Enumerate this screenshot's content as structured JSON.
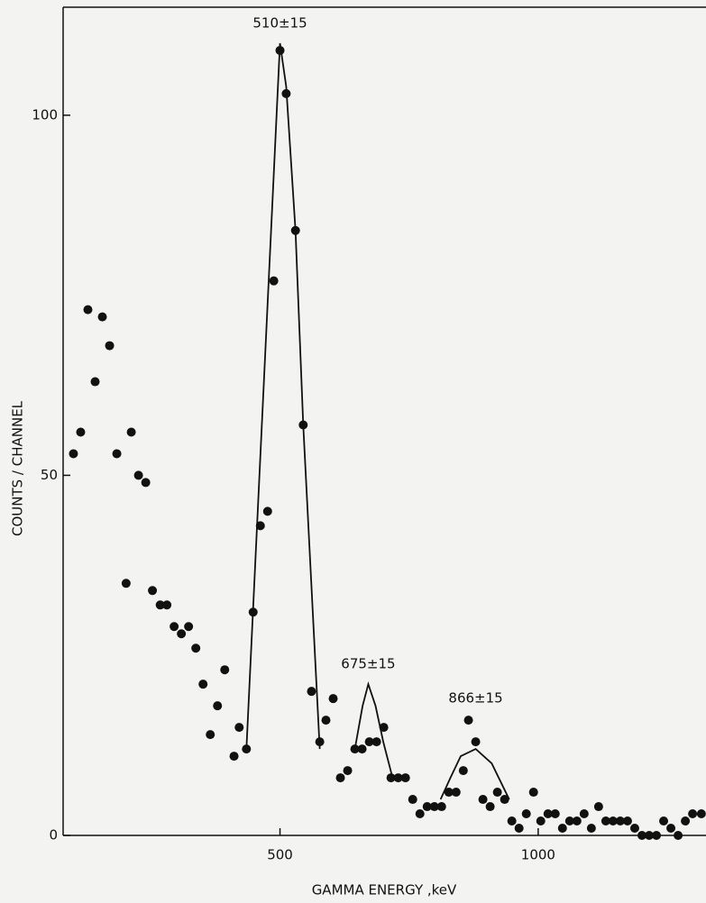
{
  "chart_data": {
    "type": "scatter",
    "xlabel": "GAMMA ENERGY ,keV",
    "ylabel": "COUNTS / CHANNEL",
    "xlim": [
      80,
      1325
    ],
    "ylim": [
      0,
      115
    ],
    "xticks": [
      500,
      1000
    ],
    "yticks": [
      0,
      50,
      100
    ],
    "annotations": [
      "510±15",
      "675±15",
      "866±15"
    ],
    "series": [
      {
        "type": "scatter",
        "color": "#111111",
        "x": [
          100,
          114,
          128,
          142,
          156,
          170,
          184,
          202,
          212,
          226,
          240,
          253,
          268,
          281,
          295,
          309,
          323,
          337,
          351,
          365,
          379,
          393,
          411,
          421,
          435,
          448,
          462,
          476,
          488,
          500,
          512,
          530,
          545,
          561,
          577,
          589,
          603,
          617,
          631,
          645,
          659,
          673,
          687,
          701,
          715,
          729,
          743,
          757,
          771,
          785,
          799,
          813,
          827,
          841,
          855,
          865,
          879,
          893,
          907,
          921,
          935,
          949,
          963,
          977,
          991,
          1005,
          1019,
          1033,
          1047,
          1061,
          1075,
          1089,
          1103,
          1117,
          1131,
          1145,
          1159,
          1173,
          1187,
          1201,
          1215,
          1229,
          1243,
          1257,
          1271,
          1285,
          1299,
          1316
        ],
        "values": [
          53,
          56,
          73,
          63,
          72,
          68,
          53,
          35,
          56,
          50,
          49,
          34,
          32,
          32,
          29,
          28,
          29,
          26,
          21,
          14,
          18,
          23,
          11,
          15,
          12,
          31,
          43,
          45,
          77,
          109,
          103,
          84,
          57,
          20,
          13,
          16,
          19,
          8,
          9,
          12,
          12,
          13,
          13,
          15,
          8,
          8,
          8,
          5,
          3,
          4,
          4,
          4,
          6,
          6,
          9,
          16,
          13,
          5,
          4,
          6,
          5,
          2,
          1,
          3,
          6,
          2,
          3,
          3,
          1,
          2,
          2,
          3,
          1,
          4,
          2,
          2,
          2,
          2,
          1,
          0,
          0,
          0,
          2,
          1,
          0,
          2,
          3,
          3
        ]
      },
      {
        "type": "line",
        "color": "#111111",
        "x": [
          435,
          500,
          512,
          530,
          545,
          577
        ],
        "values": [
          12,
          110,
          104,
          84,
          57,
          12
        ]
      },
      {
        "type": "line",
        "color": "#111111",
        "x": [
          645,
          660,
          671,
          685,
          700,
          718
        ],
        "values": [
          12,
          18,
          21,
          18,
          13,
          8
        ]
      },
      {
        "type": "line",
        "color": "#111111",
        "x": [
          811,
          830,
          850,
          879,
          910,
          944
        ],
        "values": [
          5,
          8,
          11,
          12,
          10,
          5
        ]
      }
    ]
  }
}
